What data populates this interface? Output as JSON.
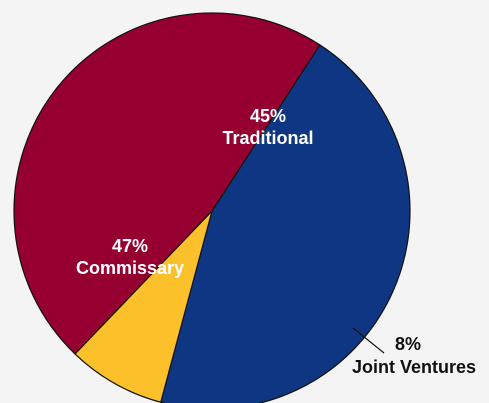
{
  "chart_data": {
    "type": "pie",
    "slices": [
      {
        "label": "Traditional",
        "value": 45,
        "value_label": "45%",
        "color": "#0f3682"
      },
      {
        "label": "Joint Ventures",
        "value": 8,
        "value_label": "8%",
        "color": "#fcc02a"
      },
      {
        "label": "Commissary",
        "value": 47,
        "value_label": "47%",
        "color": "#960030"
      }
    ],
    "colors": {
      "outline": "#111111",
      "inside_label": "#ffffff",
      "outside_label": "#111111",
      "background": "#f4f4f5"
    }
  }
}
